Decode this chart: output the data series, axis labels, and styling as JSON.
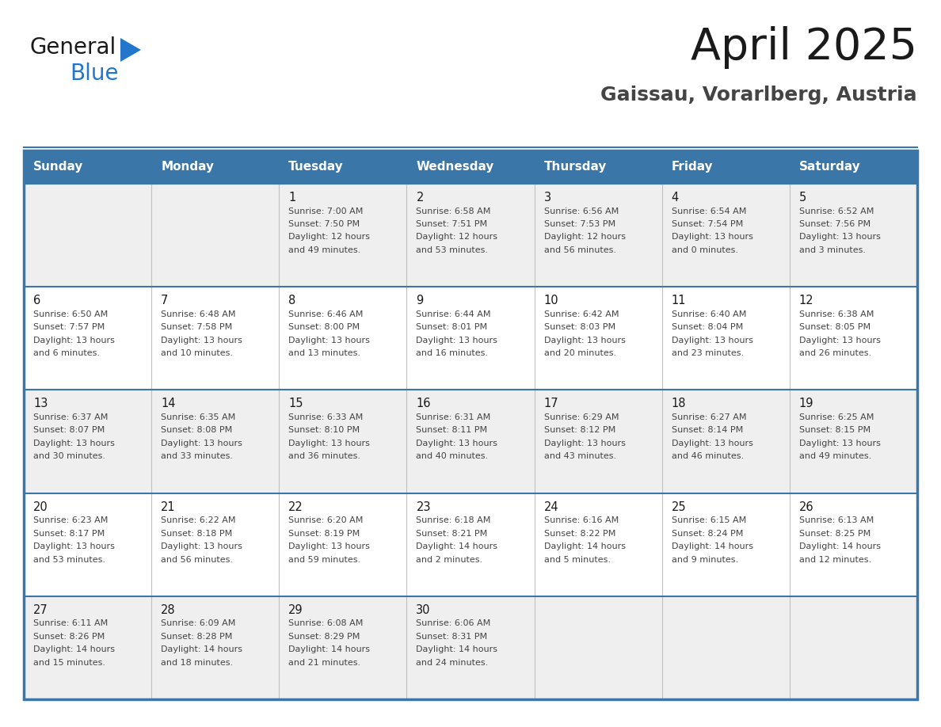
{
  "title": "April 2025",
  "subtitle": "Gaissau, Vorarlberg, Austria",
  "header_bg": "#3A76A8",
  "header_text": "#FFFFFF",
  "row_bg_even": "#EFEFEF",
  "row_bg_odd": "#FFFFFF",
  "border_color": "#3A76A8",
  "row_line_color": "#3A76A8",
  "col_line_color": "#C0C0C0",
  "day_headers": [
    "Sunday",
    "Monday",
    "Tuesday",
    "Wednesday",
    "Thursday",
    "Friday",
    "Saturday"
  ],
  "days": [
    {
      "day": 1,
      "col": 2,
      "row": 0,
      "sunrise": "7:00 AM",
      "sunset": "7:50 PM",
      "daylight_h": "12 hours",
      "daylight_m": "49 minutes."
    },
    {
      "day": 2,
      "col": 3,
      "row": 0,
      "sunrise": "6:58 AM",
      "sunset": "7:51 PM",
      "daylight_h": "12 hours",
      "daylight_m": "53 minutes."
    },
    {
      "day": 3,
      "col": 4,
      "row": 0,
      "sunrise": "6:56 AM",
      "sunset": "7:53 PM",
      "daylight_h": "12 hours",
      "daylight_m": "56 minutes."
    },
    {
      "day": 4,
      "col": 5,
      "row": 0,
      "sunrise": "6:54 AM",
      "sunset": "7:54 PM",
      "daylight_h": "13 hours",
      "daylight_m": "0 minutes."
    },
    {
      "day": 5,
      "col": 6,
      "row": 0,
      "sunrise": "6:52 AM",
      "sunset": "7:56 PM",
      "daylight_h": "13 hours",
      "daylight_m": "3 minutes."
    },
    {
      "day": 6,
      "col": 0,
      "row": 1,
      "sunrise": "6:50 AM",
      "sunset": "7:57 PM",
      "daylight_h": "13 hours",
      "daylight_m": "6 minutes."
    },
    {
      "day": 7,
      "col": 1,
      "row": 1,
      "sunrise": "6:48 AM",
      "sunset": "7:58 PM",
      "daylight_h": "13 hours",
      "daylight_m": "10 minutes."
    },
    {
      "day": 8,
      "col": 2,
      "row": 1,
      "sunrise": "6:46 AM",
      "sunset": "8:00 PM",
      "daylight_h": "13 hours",
      "daylight_m": "13 minutes."
    },
    {
      "day": 9,
      "col": 3,
      "row": 1,
      "sunrise": "6:44 AM",
      "sunset": "8:01 PM",
      "daylight_h": "13 hours",
      "daylight_m": "16 minutes."
    },
    {
      "day": 10,
      "col": 4,
      "row": 1,
      "sunrise": "6:42 AM",
      "sunset": "8:03 PM",
      "daylight_h": "13 hours",
      "daylight_m": "20 minutes."
    },
    {
      "day": 11,
      "col": 5,
      "row": 1,
      "sunrise": "6:40 AM",
      "sunset": "8:04 PM",
      "daylight_h": "13 hours",
      "daylight_m": "23 minutes."
    },
    {
      "day": 12,
      "col": 6,
      "row": 1,
      "sunrise": "6:38 AM",
      "sunset": "8:05 PM",
      "daylight_h": "13 hours",
      "daylight_m": "26 minutes."
    },
    {
      "day": 13,
      "col": 0,
      "row": 2,
      "sunrise": "6:37 AM",
      "sunset": "8:07 PM",
      "daylight_h": "13 hours",
      "daylight_m": "30 minutes."
    },
    {
      "day": 14,
      "col": 1,
      "row": 2,
      "sunrise": "6:35 AM",
      "sunset": "8:08 PM",
      "daylight_h": "13 hours",
      "daylight_m": "33 minutes."
    },
    {
      "day": 15,
      "col": 2,
      "row": 2,
      "sunrise": "6:33 AM",
      "sunset": "8:10 PM",
      "daylight_h": "13 hours",
      "daylight_m": "36 minutes."
    },
    {
      "day": 16,
      "col": 3,
      "row": 2,
      "sunrise": "6:31 AM",
      "sunset": "8:11 PM",
      "daylight_h": "13 hours",
      "daylight_m": "40 minutes."
    },
    {
      "day": 17,
      "col": 4,
      "row": 2,
      "sunrise": "6:29 AM",
      "sunset": "8:12 PM",
      "daylight_h": "13 hours",
      "daylight_m": "43 minutes."
    },
    {
      "day": 18,
      "col": 5,
      "row": 2,
      "sunrise": "6:27 AM",
      "sunset": "8:14 PM",
      "daylight_h": "13 hours",
      "daylight_m": "46 minutes."
    },
    {
      "day": 19,
      "col": 6,
      "row": 2,
      "sunrise": "6:25 AM",
      "sunset": "8:15 PM",
      "daylight_h": "13 hours",
      "daylight_m": "49 minutes."
    },
    {
      "day": 20,
      "col": 0,
      "row": 3,
      "sunrise": "6:23 AM",
      "sunset": "8:17 PM",
      "daylight_h": "13 hours",
      "daylight_m": "53 minutes."
    },
    {
      "day": 21,
      "col": 1,
      "row": 3,
      "sunrise": "6:22 AM",
      "sunset": "8:18 PM",
      "daylight_h": "13 hours",
      "daylight_m": "56 minutes."
    },
    {
      "day": 22,
      "col": 2,
      "row": 3,
      "sunrise": "6:20 AM",
      "sunset": "8:19 PM",
      "daylight_h": "13 hours",
      "daylight_m": "59 minutes."
    },
    {
      "day": 23,
      "col": 3,
      "row": 3,
      "sunrise": "6:18 AM",
      "sunset": "8:21 PM",
      "daylight_h": "14 hours",
      "daylight_m": "2 minutes."
    },
    {
      "day": 24,
      "col": 4,
      "row": 3,
      "sunrise": "6:16 AM",
      "sunset": "8:22 PM",
      "daylight_h": "14 hours",
      "daylight_m": "5 minutes."
    },
    {
      "day": 25,
      "col": 5,
      "row": 3,
      "sunrise": "6:15 AM",
      "sunset": "8:24 PM",
      "daylight_h": "14 hours",
      "daylight_m": "9 minutes."
    },
    {
      "day": 26,
      "col": 6,
      "row": 3,
      "sunrise": "6:13 AM",
      "sunset": "8:25 PM",
      "daylight_h": "14 hours",
      "daylight_m": "12 minutes."
    },
    {
      "day": 27,
      "col": 0,
      "row": 4,
      "sunrise": "6:11 AM",
      "sunset": "8:26 PM",
      "daylight_h": "14 hours",
      "daylight_m": "15 minutes."
    },
    {
      "day": 28,
      "col": 1,
      "row": 4,
      "sunrise": "6:09 AM",
      "sunset": "8:28 PM",
      "daylight_h": "14 hours",
      "daylight_m": "18 minutes."
    },
    {
      "day": 29,
      "col": 2,
      "row": 4,
      "sunrise": "6:08 AM",
      "sunset": "8:29 PM",
      "daylight_h": "14 hours",
      "daylight_m": "21 minutes."
    },
    {
      "day": 30,
      "col": 3,
      "row": 4,
      "sunrise": "6:06 AM",
      "sunset": "8:31 PM",
      "daylight_h": "14 hours",
      "daylight_m": "24 minutes."
    }
  ],
  "logo_text1_color": "#1A1A1A",
  "logo_text2_color": "#2277CC",
  "logo_triangle_color": "#2277CC",
  "title_color": "#1A1A1A",
  "subtitle_color": "#444444",
  "day_num_color": "#1A1A1A",
  "cell_text_color": "#444444"
}
